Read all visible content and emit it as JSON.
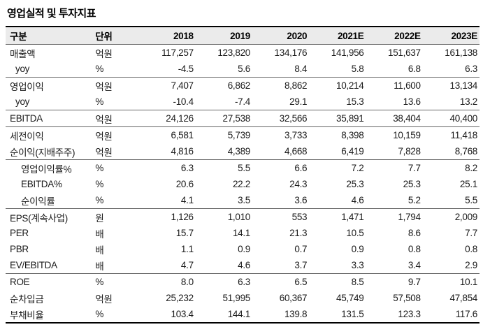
{
  "title": "영업실적 및 투자지표",
  "table": {
    "header": {
      "label": "구분",
      "unit": "단위",
      "years": [
        "2018",
        "2019",
        "2020",
        "2021E",
        "2022E",
        "2023E"
      ]
    },
    "rows": [
      {
        "label": "매출액",
        "unit": "억원",
        "indent": 0,
        "sep_after": false,
        "values": [
          "117,257",
          "123,820",
          "134,176",
          "141,956",
          "151,637",
          "161,138"
        ]
      },
      {
        "label": "yoy",
        "unit": "%",
        "indent": 1,
        "sep_after": true,
        "values": [
          "-4.5",
          "5.6",
          "8.4",
          "5.8",
          "6.8",
          "6.3"
        ]
      },
      {
        "label": "영업이익",
        "unit": "억원",
        "indent": 0,
        "sep_after": false,
        "values": [
          "7,407",
          "6,862",
          "8,862",
          "10,214",
          "11,600",
          "13,134"
        ]
      },
      {
        "label": "yoy",
        "unit": "%",
        "indent": 1,
        "sep_after": true,
        "values": [
          "-10.4",
          "-7.4",
          "29.1",
          "15.3",
          "13.6",
          "13.2"
        ]
      },
      {
        "label": "EBITDA",
        "unit": "억원",
        "indent": 0,
        "sep_after": true,
        "values": [
          "24,126",
          "27,538",
          "32,566",
          "35,891",
          "38,404",
          "40,400"
        ]
      },
      {
        "label": "세전이익",
        "unit": "억원",
        "indent": 0,
        "sep_after": false,
        "values": [
          "6,581",
          "5,739",
          "3,733",
          "8,398",
          "10,159",
          "11,418"
        ]
      },
      {
        "label": "순이익(지배주주)",
        "unit": "억원",
        "indent": 0,
        "sep_after": true,
        "values": [
          "4,816",
          "4,389",
          "4,668",
          "6,419",
          "7,828",
          "8,768"
        ]
      },
      {
        "label": "영업이익률%",
        "unit": "%",
        "indent": 2,
        "sep_after": false,
        "values": [
          "6.3",
          "5.5",
          "6.6",
          "7.2",
          "7.7",
          "8.2"
        ]
      },
      {
        "label": "EBITDA%",
        "unit": "%",
        "indent": 2,
        "sep_after": false,
        "values": [
          "20.6",
          "22.2",
          "24.3",
          "25.3",
          "25.3",
          "25.1"
        ]
      },
      {
        "label": "순이익률",
        "unit": "%",
        "indent": 2,
        "sep_after": true,
        "values": [
          "4.1",
          "3.5",
          "3.6",
          "4.6",
          "5.2",
          "5.5"
        ]
      },
      {
        "label": "EPS(계속사업)",
        "unit": "원",
        "indent": 0,
        "sep_after": false,
        "values": [
          "1,126",
          "1,010",
          "553",
          "1,471",
          "1,794",
          "2,009"
        ]
      },
      {
        "label": "PER",
        "unit": "배",
        "indent": 0,
        "sep_after": false,
        "values": [
          "15.7",
          "14.1",
          "21.3",
          "10.5",
          "8.6",
          "7.7"
        ]
      },
      {
        "label": "PBR",
        "unit": "배",
        "indent": 0,
        "sep_after": false,
        "values": [
          "1.1",
          "0.9",
          "0.7",
          "0.9",
          "0.8",
          "0.8"
        ]
      },
      {
        "label": "EV/EBITDA",
        "unit": "배",
        "indent": 0,
        "sep_after": true,
        "values": [
          "4.7",
          "4.6",
          "3.7",
          "3.3",
          "3.4",
          "2.9"
        ]
      },
      {
        "label": "ROE",
        "unit": "%",
        "indent": 0,
        "sep_after": false,
        "values": [
          "8.0",
          "6.3",
          "6.5",
          "8.5",
          "9.7",
          "10.1"
        ]
      },
      {
        "label": "순차입금",
        "unit": "억원",
        "indent": 0,
        "sep_after": false,
        "values": [
          "25,232",
          "51,995",
          "60,367",
          "45,749",
          "57,508",
          "47,854"
        ]
      },
      {
        "label": "부채비율",
        "unit": "%",
        "indent": 0,
        "sep_after": false,
        "values": [
          "103.4",
          "144.1",
          "139.8",
          "131.5",
          "123.3",
          "117.6"
        ]
      }
    ]
  }
}
